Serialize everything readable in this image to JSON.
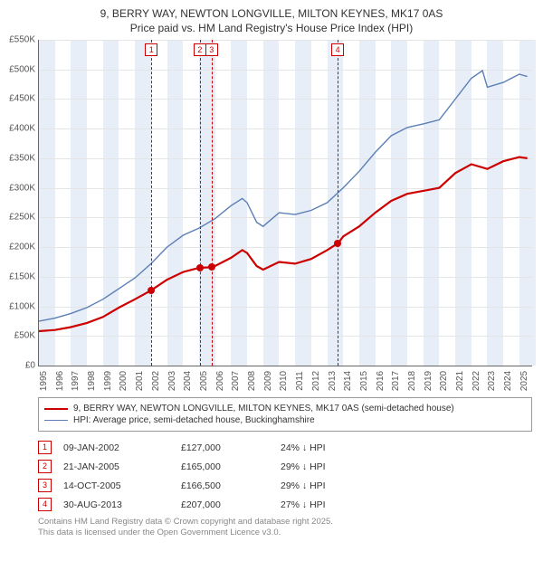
{
  "header": {
    "title": "9, BERRY WAY, NEWTON LONGVILLE, MILTON KEYNES, MK17 0AS",
    "subtitle": "Price paid vs. HM Land Registry's House Price Index (HPI)"
  },
  "chart": {
    "type": "line",
    "xlim": [
      1995,
      2025.8
    ],
    "ylim": [
      0,
      550
    ],
    "ytick_step": 50,
    "ytick_prefix": "£",
    "ytick_suffix": "K",
    "xtick_step": 1,
    "background_color": "#ffffff",
    "grid_color": "#e5e5e5",
    "series": [
      {
        "id": "price_paid",
        "label": "9, BERRY WAY, NEWTON LONGVILLE, MILTON KEYNES, MK17 0AS (semi-detached house)",
        "color": "#cc0000",
        "width": 2.2,
        "points": [
          [
            1995,
            58
          ],
          [
            1996,
            60
          ],
          [
            1997,
            65
          ],
          [
            1998,
            72
          ],
          [
            1999,
            82
          ],
          [
            2000,
            98
          ],
          [
            2001,
            112
          ],
          [
            2002,
            127
          ],
          [
            2003,
            145
          ],
          [
            2004,
            158
          ],
          [
            2005,
            165
          ],
          [
            2005.8,
            166
          ],
          [
            2006,
            168
          ],
          [
            2007,
            182
          ],
          [
            2007.7,
            195
          ],
          [
            2008,
            190
          ],
          [
            2008.6,
            168
          ],
          [
            2009,
            162
          ],
          [
            2010,
            175
          ],
          [
            2011,
            172
          ],
          [
            2012,
            180
          ],
          [
            2013,
            195
          ],
          [
            2013.7,
            207
          ],
          [
            2014,
            218
          ],
          [
            2015,
            235
          ],
          [
            2016,
            258
          ],
          [
            2017,
            278
          ],
          [
            2018,
            290
          ],
          [
            2019,
            295
          ],
          [
            2020,
            300
          ],
          [
            2021,
            325
          ],
          [
            2022,
            340
          ],
          [
            2023,
            332
          ],
          [
            2024,
            345
          ],
          [
            2025,
            352
          ],
          [
            2025.5,
            350
          ]
        ]
      },
      {
        "id": "hpi",
        "label": "HPI: Average price, semi-detached house, Buckinghamshire",
        "color": "#5b7fb5",
        "width": 1.4,
        "points": [
          [
            1995,
            75
          ],
          [
            1996,
            80
          ],
          [
            1997,
            88
          ],
          [
            1998,
            98
          ],
          [
            1999,
            112
          ],
          [
            2000,
            130
          ],
          [
            2001,
            148
          ],
          [
            2002,
            172
          ],
          [
            2003,
            200
          ],
          [
            2004,
            220
          ],
          [
            2005,
            232
          ],
          [
            2006,
            248
          ],
          [
            2007,
            270
          ],
          [
            2007.7,
            282
          ],
          [
            2008,
            275
          ],
          [
            2008.6,
            242
          ],
          [
            2009,
            235
          ],
          [
            2010,
            258
          ],
          [
            2011,
            255
          ],
          [
            2012,
            262
          ],
          [
            2013,
            275
          ],
          [
            2014,
            300
          ],
          [
            2015,
            328
          ],
          [
            2016,
            360
          ],
          [
            2017,
            388
          ],
          [
            2018,
            402
          ],
          [
            2019,
            408
          ],
          [
            2020,
            415
          ],
          [
            2021,
            450
          ],
          [
            2022,
            485
          ],
          [
            2022.7,
            498
          ],
          [
            2023,
            470
          ],
          [
            2024,
            478
          ],
          [
            2025,
            492
          ],
          [
            2025.5,
            488
          ]
        ]
      }
    ],
    "sale_markers": [
      {
        "idx": "1",
        "year": 2002.02
      },
      {
        "idx": "2",
        "year": 2005.05
      },
      {
        "idx": "3",
        "year": 2005.78
      },
      {
        "idx": "4",
        "year": 2013.66
      }
    ],
    "marker_dots": [
      {
        "year": 2002.02,
        "value": 127
      },
      {
        "year": 2005.05,
        "value": 165
      },
      {
        "year": 2005.78,
        "value": 166.5
      },
      {
        "year": 2013.66,
        "value": 207
      }
    ],
    "band_color": "#e8eef7",
    "marker_color": "#cc0000"
  },
  "legend": {
    "items": [
      {
        "color": "#cc0000",
        "width": 2.2,
        "label_ref": "chart.series.0.label"
      },
      {
        "color": "#5b7fb5",
        "width": 1.4,
        "label_ref": "chart.series.1.label"
      }
    ]
  },
  "sales_table": {
    "rows": [
      {
        "idx": "1",
        "date": "09-JAN-2002",
        "price": "£127,000",
        "diff": "24% ↓ HPI"
      },
      {
        "idx": "2",
        "date": "21-JAN-2005",
        "price": "£165,000",
        "diff": "29% ↓ HPI"
      },
      {
        "idx": "3",
        "date": "14-OCT-2005",
        "price": "£166,500",
        "diff": "29% ↓ HPI"
      },
      {
        "idx": "4",
        "date": "30-AUG-2013",
        "price": "£207,000",
        "diff": "27% ↓ HPI"
      }
    ]
  },
  "footer": {
    "line1": "Contains HM Land Registry data © Crown copyright and database right 2025.",
    "line2": "This data is licensed under the Open Government Licence v3.0."
  }
}
